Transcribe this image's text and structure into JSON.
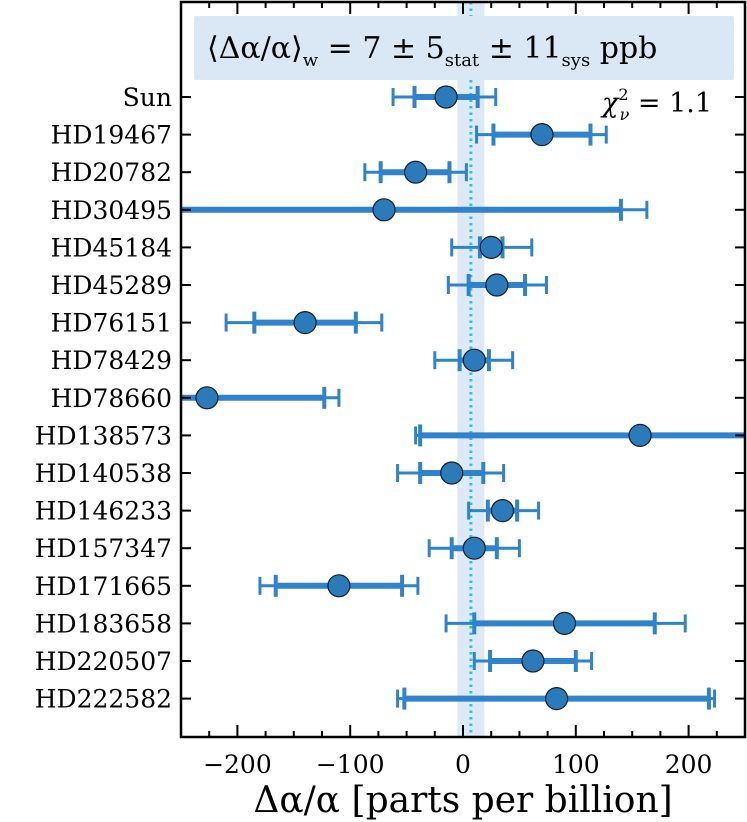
{
  "chart_data": {
    "type": "scatter",
    "subtype": "horizontal error-bar (forest) plot",
    "xlabel": "Δα/α [parts per billion]",
    "xlim": [
      -250,
      250
    ],
    "xticks": [
      -200,
      -100,
      0,
      100,
      200
    ],
    "xtick_labels": [
      "−200",
      "−100",
      "0",
      "100",
      "200"
    ],
    "grid": false,
    "weighted_mean": 7,
    "weighted_mean_band": [
      -5,
      19
    ],
    "annotation": {
      "prefix": "⟨Δα/α⟩",
      "prefix_sub": "w",
      "equals_value": " = 7 ± 5",
      "stat_sub": "stat",
      "mid": " ± 11",
      "sys_sub": "sys",
      "suffix": " ppb"
    },
    "chi2": {
      "symbol": "χ",
      "sup": "2",
      "sub": "ν",
      "value_text": " = 1.1"
    },
    "colors": {
      "marker": "#2b7bba",
      "errorbar": "#2f82cc",
      "band": "#dde9f6",
      "mean_line": "#22c7e0",
      "annotation_box": "#dae8f6"
    },
    "series": [
      {
        "star": "Sun",
        "value": -15,
        "stat": [
          -43,
          13
        ],
        "total": [
          -62,
          29
        ]
      },
      {
        "star": "HD19467",
        "value": 70,
        "stat": [
          27,
          113
        ],
        "total": [
          12,
          127
        ]
      },
      {
        "star": "HD20782",
        "value": -42,
        "stat": [
          -73,
          -12
        ],
        "total": [
          -87,
          3
        ]
      },
      {
        "star": "HD30495",
        "value": -70,
        "stat": [
          -250,
          140
        ],
        "total": [
          -250,
          163
        ]
      },
      {
        "star": "HD45184",
        "value": 25,
        "stat": [
          15,
          35
        ],
        "total": [
          -10,
          61
        ]
      },
      {
        "star": "HD45289",
        "value": 30,
        "stat": [
          5,
          55
        ],
        "total": [
          -13,
          74
        ]
      },
      {
        "star": "HD76151",
        "value": -140,
        "stat": [
          -185,
          -95
        ],
        "total": [
          -210,
          -72
        ]
      },
      {
        "star": "HD78429",
        "value": 10,
        "stat": [
          -3,
          23
        ],
        "total": [
          -25,
          44
        ]
      },
      {
        "star": "HD78660",
        "value": -227,
        "stat": [
          -250,
          -123
        ],
        "total": [
          -250,
          -110
        ]
      },
      {
        "star": "HD138573",
        "value": 157,
        "stat": [
          -38,
          250
        ],
        "total": [
          -42,
          250
        ]
      },
      {
        "star": "HD140538",
        "value": -10,
        "stat": [
          -38,
          18
        ],
        "total": [
          -58,
          36
        ]
      },
      {
        "star": "HD146233",
        "value": 35,
        "stat": [
          22,
          48
        ],
        "total": [
          5,
          67
        ]
      },
      {
        "star": "HD157347",
        "value": 10,
        "stat": [
          -10,
          30
        ],
        "total": [
          -30,
          50
        ]
      },
      {
        "star": "HD171665",
        "value": -110,
        "stat": [
          -166,
          -54
        ],
        "total": [
          -180,
          -40
        ]
      },
      {
        "star": "HD183658",
        "value": 90,
        "stat": [
          10,
          170
        ],
        "total": [
          -15,
          197
        ]
      },
      {
        "star": "HD220507",
        "value": 62,
        "stat": [
          24,
          100
        ],
        "total": [
          10,
          114
        ]
      },
      {
        "star": "HD222582",
        "value": 83,
        "stat": [
          -52,
          218
        ],
        "total": [
          -58,
          223
        ]
      }
    ]
  }
}
